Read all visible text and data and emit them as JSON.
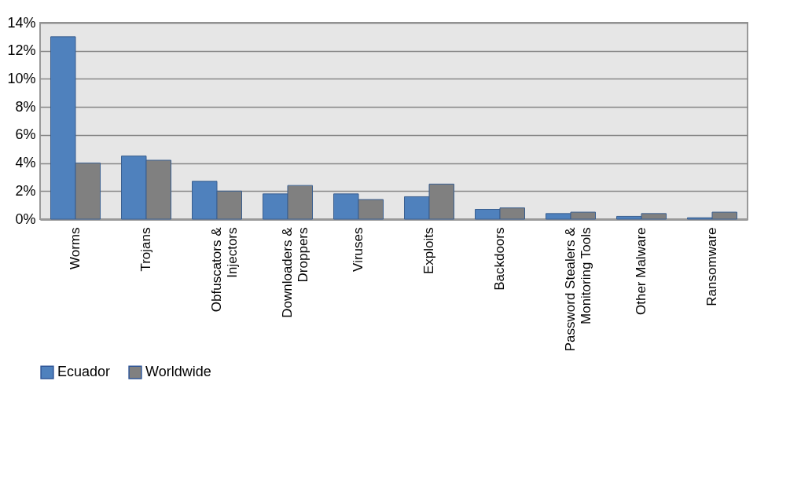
{
  "chart_data": {
    "type": "bar",
    "categories": [
      "Worms",
      "Trojans",
      "Obfuscators & Injectors",
      "Downloaders & Droppers",
      "Viruses",
      "Exploits",
      "Backdoors",
      "Password Stealers & Monitoring Tools",
      "Other Malware",
      "Ransomware"
    ],
    "series": [
      {
        "name": "Ecuador",
        "color": "#4f81bd",
        "values": [
          13.0,
          4.5,
          2.7,
          1.8,
          1.8,
          1.6,
          0.7,
          0.4,
          0.2,
          0.1
        ]
      },
      {
        "name": "Worldwide",
        "color": "#808080",
        "values": [
          4.0,
          4.2,
          2.0,
          2.4,
          1.4,
          2.5,
          0.8,
          0.5,
          0.4,
          0.5
        ]
      }
    ],
    "ylim": [
      0,
      14
    ],
    "yticks": [
      {
        "value": 0,
        "label": "0%"
      },
      {
        "value": 2,
        "label": "2%"
      },
      {
        "value": 4,
        "label": "4%"
      },
      {
        "value": 6,
        "label": "6%"
      },
      {
        "value": 8,
        "label": "8%"
      },
      {
        "value": 10,
        "label": "10%"
      },
      {
        "value": 12,
        "label": "12%"
      },
      {
        "value": 14,
        "label": "14%"
      }
    ],
    "grid": "y",
    "legend": "bottom"
  }
}
